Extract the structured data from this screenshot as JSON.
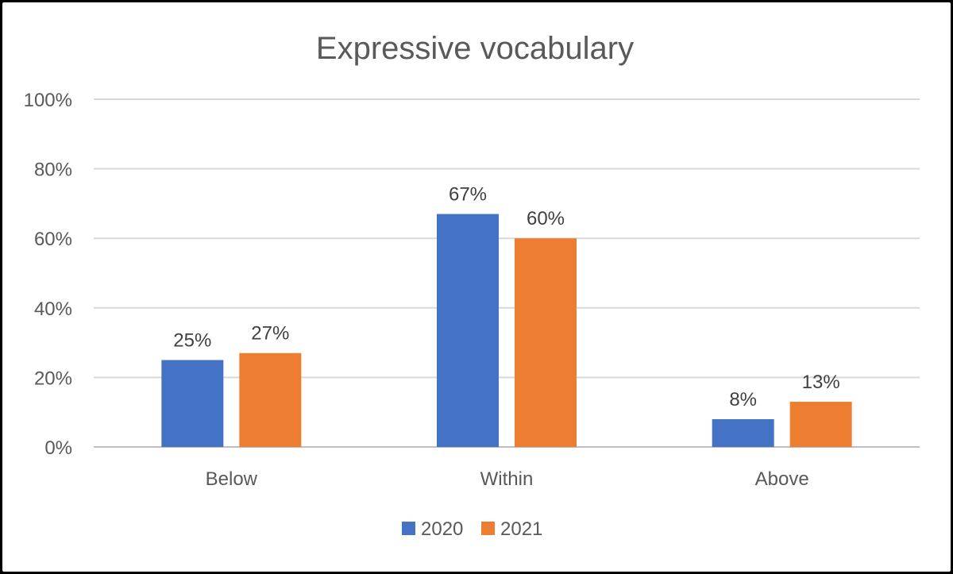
{
  "chart_data": {
    "type": "bar",
    "title": "Expressive vocabulary",
    "xlabel": "",
    "ylabel": "",
    "categories": [
      "Below",
      "Within",
      "Above"
    ],
    "series": [
      {
        "name": "2020",
        "values": [
          25,
          67,
          8
        ],
        "labels": [
          "25%",
          "67%",
          "8%"
        ],
        "color": "#4472C4"
      },
      {
        "name": "2021",
        "values": [
          27,
          60,
          13
        ],
        "labels": [
          "27%",
          "60%",
          "13%"
        ],
        "color": "#ED7D31"
      }
    ],
    "ylim": [
      0,
      100
    ],
    "yticks": [
      "0%",
      "20%",
      "40%",
      "60%",
      "80%",
      "100%"
    ],
    "grid": true,
    "legend": "bottom-center"
  }
}
